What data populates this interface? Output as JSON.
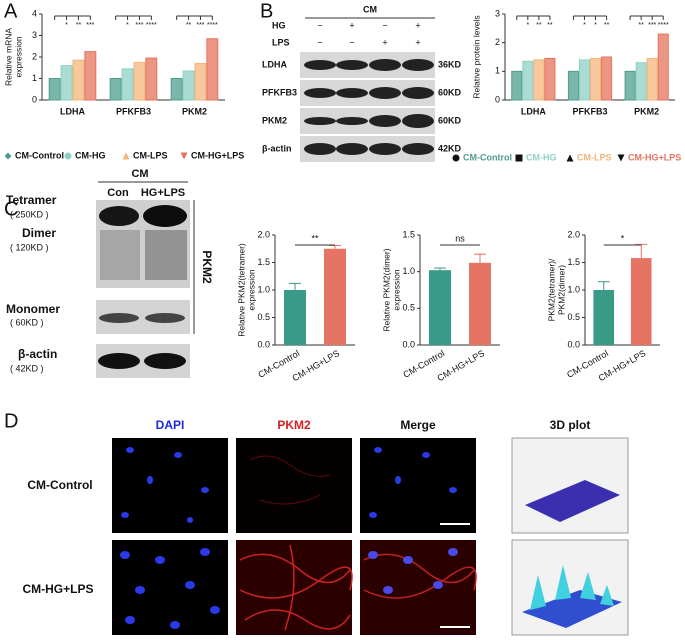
{
  "panels": [
    "A",
    "B",
    "C",
    "D"
  ],
  "blot_b": {
    "group": "CM",
    "conditions": [
      {
        "label": "HG",
        "signs": [
          "−",
          "+",
          "−",
          "+"
        ]
      },
      {
        "label": "LPS",
        "signs": [
          "−",
          "−",
          "+",
          "+"
        ]
      }
    ],
    "rows": [
      {
        "protein": "LDHA",
        "size": "36KD"
      },
      {
        "protein": "PFKFB3",
        "size": "60KD"
      },
      {
        "protein": "PKM2",
        "size": "60KD"
      },
      {
        "protein": "β-actin",
        "size": "42KD"
      }
    ]
  },
  "blot_c": {
    "group": "CM",
    "lanes": [
      "Con",
      "HG+LPS"
    ],
    "bracket_label": "PKM2",
    "bands": [
      {
        "name": "Tetramer",
        "size": "( 250KD )"
      },
      {
        "name": "Dimer",
        "size": "( 120KD )"
      },
      {
        "name": "Monomer",
        "size": "( 60KD )"
      },
      {
        "name": "β-actin",
        "size": "( 42KD )"
      }
    ]
  },
  "images": {
    "columns": [
      "DAPI",
      "PKM2",
      "Merge",
      "3D plot"
    ],
    "rows": [
      "CM-Control",
      "CM-HG+LPS"
    ]
  },
  "chart_data": [
    {
      "type": "bar",
      "ylabel": [
        "Relative mRNA",
        "expression"
      ],
      "categories": [
        "LDHA",
        "PFKFB3",
        "PKM2"
      ],
      "ylim": [
        0,
        4
      ],
      "yticks": [
        0,
        1,
        2,
        3,
        4
      ],
      "legend_style": "plain",
      "series": [
        {
          "name": "CM-Control",
          "color": "#4f9d8f",
          "marker": "diamond",
          "values": [
            1.0,
            1.0,
            1.0
          ]
        },
        {
          "name": "CM-HG",
          "color": "#8fd0c4",
          "marker": "circle",
          "values": [
            1.6,
            1.45,
            1.35
          ]
        },
        {
          "name": "CM-LPS",
          "color": "#f3b57b",
          "marker": "triangle",
          "values": [
            1.85,
            1.75,
            1.7
          ]
        },
        {
          "name": "CM-HG+LPS",
          "color": "#e5735c",
          "marker": "triangle-down",
          "values": [
            2.25,
            1.95,
            2.85
          ]
        }
      ],
      "significance": [
        [
          "*",
          "**",
          "***"
        ],
        [
          "*",
          "***",
          "****"
        ],
        [
          "**",
          "***",
          "****"
        ]
      ]
    },
    {
      "type": "bar",
      "ylabel": [
        "Relative protein levels"
      ],
      "categories": [
        "LDHA",
        "PFKFB3",
        "PKM2"
      ],
      "ylim": [
        0,
        3
      ],
      "yticks": [
        0,
        1,
        2,
        3
      ],
      "legend_style": "colored-text",
      "series": [
        {
          "name": "CM-Control",
          "color": "#4f9d8f",
          "marker": "circle",
          "values": [
            1.0,
            1.0,
            1.0
          ]
        },
        {
          "name": "CM-HG",
          "color": "#8fd0c4",
          "marker": "square",
          "values": [
            1.35,
            1.4,
            1.3
          ]
        },
        {
          "name": "CM-LPS",
          "color": "#f3b57b",
          "marker": "triangle",
          "values": [
            1.4,
            1.45,
            1.45
          ]
        },
        {
          "name": "CM-HG+LPS",
          "color": "#e5735c",
          "marker": "triangle-down",
          "values": [
            1.45,
            1.5,
            2.3
          ]
        }
      ],
      "significance": [
        [
          "*",
          "**",
          "**"
        ],
        [
          "*",
          "*",
          "**"
        ],
        [
          "**",
          "***",
          "****"
        ]
      ]
    },
    {
      "type": "bar",
      "ylabel": [
        "Relative PKM2(tetramer)",
        "expression"
      ],
      "categories": [
        "CM-Control",
        "CM-HG+LPS"
      ],
      "values": [
        1.0,
        1.75
      ],
      "errors": [
        0.12,
        0.06
      ],
      "colors": [
        "#3a9a88",
        "#e57463"
      ],
      "significance": "**",
      "ylim": [
        0,
        2
      ],
      "yticks": [
        {
          "value": 0,
          "label": "0.0"
        },
        {
          "value": 0.5,
          "label": "0.5"
        },
        {
          "value": 1,
          "label": "1.0"
        },
        {
          "value": 1.5,
          "label": "1.5"
        },
        {
          "value": 2,
          "label": "2.0"
        }
      ]
    },
    {
      "type": "bar",
      "ylabel": [
        "Relative PKM2(dimer)",
        "expression"
      ],
      "categories": [
        "CM-Control",
        "CM-HG+LPS"
      ],
      "values": [
        1.02,
        1.12
      ],
      "errors": [
        0.03,
        0.12
      ],
      "colors": [
        "#3a9a88",
        "#e57463"
      ],
      "significance": "ns",
      "ylim": [
        0,
        1.5
      ],
      "yticks": [
        {
          "value": 0,
          "label": "0.0"
        },
        {
          "value": 0.5,
          "label": "0.5"
        },
        {
          "value": 1,
          "label": "1.0"
        },
        {
          "value": 1.5,
          "label": "1.5"
        }
      ]
    },
    {
      "type": "bar",
      "ylabel": [
        "PKM2(tetramer)/",
        "PKM2(dimer)"
      ],
      "categories": [
        "CM-Control",
        "CM-HG+LPS"
      ],
      "values": [
        1.0,
        1.58
      ],
      "errors": [
        0.15,
        0.25
      ],
      "colors": [
        "#3a9a88",
        "#e57463"
      ],
      "significance": "*",
      "ylim": [
        0,
        2
      ],
      "yticks": [
        {
          "value": 0,
          "label": "0.0"
        },
        {
          "value": 0.5,
          "label": "0.5"
        },
        {
          "value": 1,
          "label": "1.0"
        },
        {
          "value": 1.5,
          "label": "1.5"
        },
        {
          "value": 2,
          "label": "2.0"
        }
      ]
    }
  ]
}
